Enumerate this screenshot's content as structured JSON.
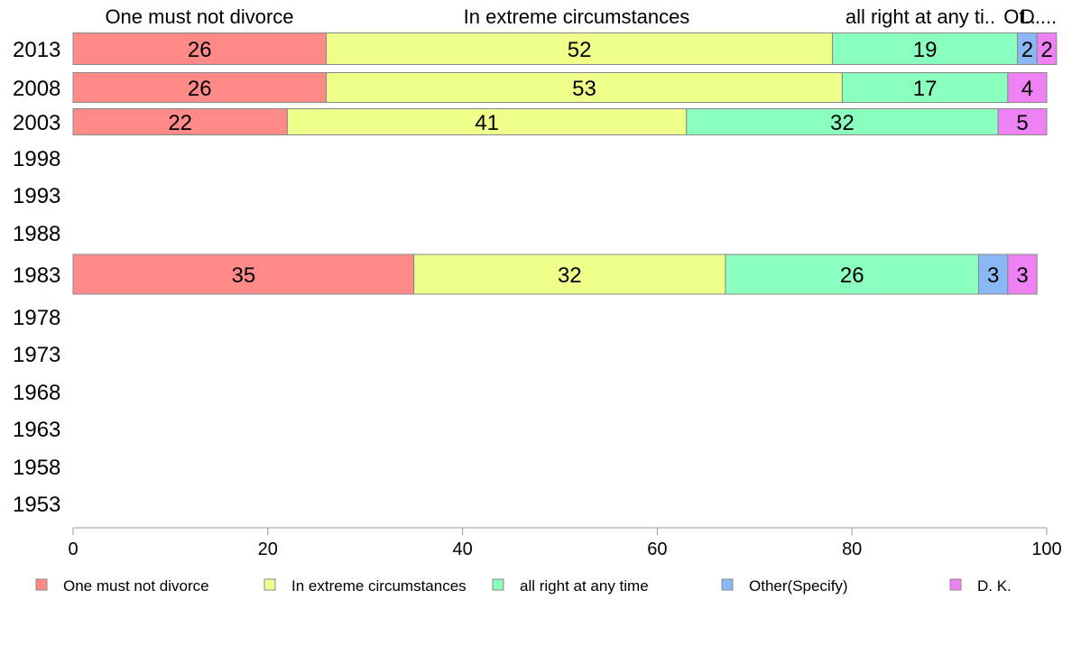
{
  "chart_data": {
    "type": "bar",
    "orientation": "horizontal",
    "stacked": true,
    "categories": [
      "2013",
      "2008",
      "2003",
      "1998",
      "1993",
      "1988",
      "1983",
      "1978",
      "1973",
      "1968",
      "1963",
      "1958",
      "1953"
    ],
    "series": [
      {
        "name": "One must not divorce",
        "color": "#FF8A87",
        "values": [
          26,
          26,
          22,
          null,
          null,
          null,
          35,
          null,
          null,
          null,
          null,
          null,
          null
        ]
      },
      {
        "name": "In extreme circumstances",
        "color": "#EEFF8A",
        "values": [
          52,
          53,
          41,
          null,
          null,
          null,
          32,
          null,
          null,
          null,
          null,
          null,
          null
        ]
      },
      {
        "name": "all right at any time",
        "color": "#8AFFBE",
        "values": [
          19,
          17,
          32,
          null,
          null,
          null,
          26,
          null,
          null,
          null,
          null,
          null,
          null
        ]
      },
      {
        "name": "Other(Specify)",
        "color": "#8AB8F5",
        "values": [
          2,
          0,
          0,
          null,
          null,
          null,
          3,
          null,
          null,
          null,
          null,
          null,
          null
        ]
      },
      {
        "name": "D. K.",
        "color": "#EE82F5",
        "values": [
          2,
          4,
          5,
          null,
          null,
          null,
          3,
          null,
          null,
          null,
          null,
          null,
          null
        ]
      }
    ],
    "top_labels": [
      "One must not divorce",
      "In extreme circumstances",
      "all right at any ti..",
      "Ot..",
      "D...."
    ],
    "xlim": [
      0,
      100
    ],
    "xticks": [
      0,
      20,
      40,
      60,
      80,
      100
    ],
    "grid": false,
    "legend_position": "bottom"
  }
}
